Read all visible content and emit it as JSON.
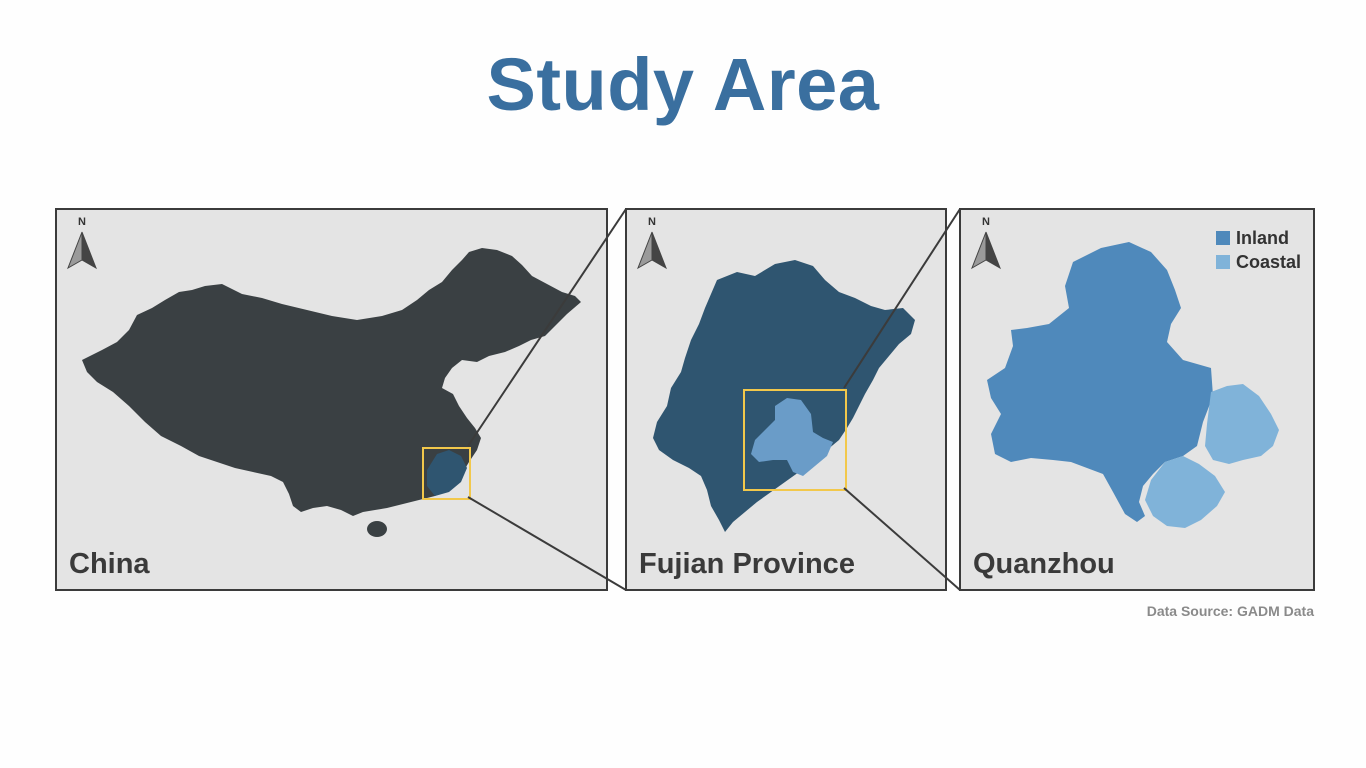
{
  "title": "Study Area",
  "panels": {
    "china": {
      "label": "China"
    },
    "fujian": {
      "label": "Fujian Province"
    },
    "quanzhou": {
      "label": "Quanzhou"
    }
  },
  "north_arrow": {
    "label": "N"
  },
  "legend": [
    {
      "label": "Inland",
      "color": "#4f89bb"
    },
    {
      "label": "Coastal",
      "color": "#80b3d9"
    }
  ],
  "colors": {
    "china_fill": "#3a4043",
    "fujian_fill": "#2f5570",
    "highlight_box": "#f2c84b",
    "panel_bg": "#e4e4e4"
  },
  "data_source": "Data Source: GADM Data"
}
